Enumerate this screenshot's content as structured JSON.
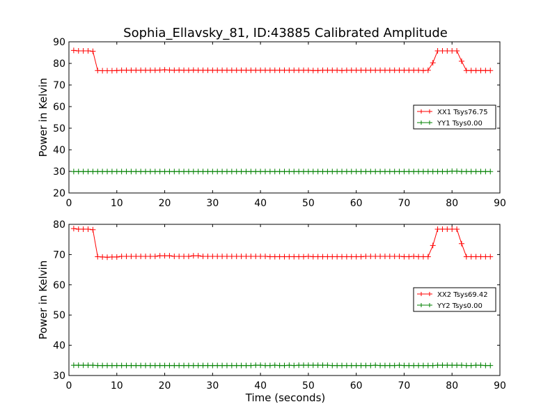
{
  "figure": {
    "title": "Sophia_Ellavsky_81, ID:43885 Calibrated Amplitude",
    "xlabel": "Time (seconds)"
  },
  "colors": {
    "xx": "#ff0000",
    "yy": "#008000",
    "axes": "#000000",
    "background": "#ffffff"
  },
  "chart_data": [
    {
      "type": "line",
      "ylabel": "Power in Kelvin",
      "xlim": [
        0,
        90
      ],
      "ylim": [
        20,
        90
      ],
      "xticks": [
        "0",
        "10",
        "20",
        "30",
        "40",
        "50",
        "60",
        "70",
        "80",
        "90"
      ],
      "yticks": [
        "20",
        "30",
        "40",
        "50",
        "60",
        "70",
        "80",
        "90"
      ],
      "grid": false,
      "legend_position": "right",
      "x": [
        1,
        2,
        3,
        4,
        5,
        6,
        7,
        8,
        9,
        10,
        11,
        12,
        13,
        14,
        15,
        16,
        17,
        18,
        19,
        20,
        21,
        22,
        23,
        24,
        25,
        26,
        27,
        28,
        29,
        30,
        31,
        32,
        33,
        34,
        35,
        36,
        37,
        38,
        39,
        40,
        41,
        42,
        43,
        44,
        45,
        46,
        47,
        48,
        49,
        50,
        51,
        52,
        53,
        54,
        55,
        56,
        57,
        58,
        59,
        60,
        61,
        62,
        63,
        64,
        65,
        66,
        67,
        68,
        69,
        70,
        71,
        72,
        73,
        74,
        75,
        76,
        77,
        78,
        79,
        80,
        81,
        82,
        83,
        84,
        85,
        86,
        87,
        88
      ],
      "series": [
        {
          "name": "XX1 Tsys76.75",
          "color": "#ff0000",
          "values": [
            86,
            85.8,
            85.8,
            85.8,
            85.6,
            76.7,
            76.6,
            76.6,
            76.6,
            76.7,
            76.8,
            76.8,
            76.8,
            76.8,
            76.8,
            76.8,
            76.8,
            76.8,
            76.9,
            77,
            76.9,
            76.8,
            76.9,
            76.8,
            76.8,
            76.9,
            76.8,
            76.8,
            76.8,
            76.8,
            76.8,
            76.8,
            76.8,
            76.8,
            76.8,
            76.8,
            76.8,
            76.8,
            76.8,
            76.8,
            76.8,
            76.8,
            76.8,
            76.8,
            76.8,
            76.8,
            76.8,
            76.8,
            76.8,
            76.8,
            76.7,
            76.7,
            76.8,
            76.8,
            76.8,
            76.8,
            76.7,
            76.8,
            76.8,
            76.8,
            76.8,
            76.8,
            76.8,
            76.8,
            76.8,
            76.8,
            76.8,
            76.8,
            76.8,
            76.8,
            76.8,
            76.8,
            76.8,
            76.7,
            76.8,
            80.3,
            85.8,
            85.8,
            85.8,
            85.8,
            85.8,
            81,
            76.7,
            76.7,
            76.7,
            76.7,
            76.7,
            76.7
          ]
        },
        {
          "name": "YY1 Tsys0.00",
          "color": "#008000",
          "values": [
            29.9,
            29.9,
            29.9,
            29.9,
            29.9,
            29.9,
            29.9,
            29.9,
            29.9,
            29.9,
            29.9,
            29.9,
            29.9,
            29.9,
            29.9,
            29.9,
            29.9,
            29.9,
            29.9,
            29.9,
            29.9,
            29.9,
            29.9,
            29.9,
            29.9,
            29.9,
            29.9,
            29.9,
            29.9,
            29.9,
            29.9,
            29.9,
            29.9,
            29.9,
            29.9,
            29.9,
            29.9,
            29.9,
            29.9,
            29.9,
            29.9,
            29.9,
            29.9,
            29.9,
            29.9,
            29.9,
            29.9,
            29.9,
            29.9,
            29.9,
            29.9,
            29.9,
            29.9,
            29.9,
            29.9,
            29.9,
            29.9,
            29.9,
            29.9,
            29.9,
            29.9,
            29.9,
            29.9,
            29.9,
            29.9,
            29.9,
            29.9,
            29.9,
            29.9,
            29.9,
            29.9,
            29.9,
            29.9,
            29.9,
            29.9,
            29.9,
            29.9,
            29.9,
            29.9,
            30.1,
            30.1,
            29.9,
            29.9,
            29.9,
            29.9,
            29.9,
            29.9,
            29.9
          ]
        }
      ]
    },
    {
      "type": "line",
      "ylabel": "Power in Kelvin",
      "xlim": [
        0,
        90
      ],
      "ylim": [
        30,
        80
      ],
      "xticks": [
        "0",
        "10",
        "20",
        "30",
        "40",
        "50",
        "60",
        "70",
        "80",
        "90"
      ],
      "yticks": [
        "30",
        "40",
        "50",
        "60",
        "70",
        "80"
      ],
      "grid": false,
      "legend_position": "right",
      "x": [
        1,
        2,
        3,
        4,
        5,
        6,
        7,
        8,
        9,
        10,
        11,
        12,
        13,
        14,
        15,
        16,
        17,
        18,
        19,
        20,
        21,
        22,
        23,
        24,
        25,
        26,
        27,
        28,
        29,
        30,
        31,
        32,
        33,
        34,
        35,
        36,
        37,
        38,
        39,
        40,
        41,
        42,
        43,
        44,
        45,
        46,
        47,
        48,
        49,
        50,
        51,
        52,
        53,
        54,
        55,
        56,
        57,
        58,
        59,
        60,
        61,
        62,
        63,
        64,
        65,
        66,
        67,
        68,
        69,
        70,
        71,
        72,
        73,
        74,
        75,
        76,
        77,
        78,
        79,
        80,
        81,
        82,
        83,
        84,
        85,
        86,
        87,
        88
      ],
      "series": [
        {
          "name": "XX2 Tsys69.42",
          "color": "#ff0000",
          "values": [
            78.6,
            78.4,
            78.4,
            78.4,
            78.2,
            69.3,
            69.2,
            69.1,
            69.2,
            69.2,
            69.4,
            69.4,
            69.4,
            69.4,
            69.4,
            69.4,
            69.4,
            69.4,
            69.6,
            69.6,
            69.6,
            69.4,
            69.4,
            69.4,
            69.4,
            69.6,
            69.6,
            69.4,
            69.4,
            69.4,
            69.4,
            69.4,
            69.4,
            69.4,
            69.4,
            69.4,
            69.4,
            69.4,
            69.4,
            69.4,
            69.4,
            69.3,
            69.3,
            69.3,
            69.3,
            69.3,
            69.3,
            69.3,
            69.3,
            69.4,
            69.3,
            69.3,
            69.3,
            69.3,
            69.3,
            69.3,
            69.3,
            69.3,
            69.3,
            69.3,
            69.3,
            69.4,
            69.4,
            69.4,
            69.4,
            69.4,
            69.4,
            69.4,
            69.4,
            69.3,
            69.3,
            69.4,
            69.3,
            69.3,
            69.3,
            73,
            78.4,
            78.4,
            78.4,
            78.4,
            78.4,
            73.6,
            69.3,
            69.3,
            69.3,
            69.3,
            69.3,
            69.3
          ]
        },
        {
          "name": "YY2 Tsys0.00",
          "color": "#008000",
          "values": [
            33.4,
            33.4,
            33.4,
            33.4,
            33.4,
            33.3,
            33.3,
            33.3,
            33.3,
            33.3,
            33.3,
            33.3,
            33.3,
            33.3,
            33.3,
            33.3,
            33.3,
            33.3,
            33.3,
            33.3,
            33.3,
            33.3,
            33.3,
            33.3,
            33.3,
            33.3,
            33.3,
            33.3,
            33.3,
            33.3,
            33.3,
            33.3,
            33.3,
            33.3,
            33.3,
            33.3,
            33.3,
            33.3,
            33.4,
            33.4,
            33.3,
            33.3,
            33.4,
            33.3,
            33.3,
            33.4,
            33.3,
            33.4,
            33.4,
            33.4,
            33.4,
            33.4,
            33.4,
            33.4,
            33.3,
            33.3,
            33.3,
            33.3,
            33.3,
            33.3,
            33.3,
            33.3,
            33.3,
            33.4,
            33.3,
            33.3,
            33.3,
            33.3,
            33.4,
            33.3,
            33.3,
            33.3,
            33.3,
            33.3,
            33.3,
            33.3,
            33.4,
            33.4,
            33.4,
            33.4,
            33.4,
            33.4,
            33.3,
            33.3,
            33.4,
            33.4,
            33.3,
            33.3
          ]
        }
      ]
    }
  ]
}
